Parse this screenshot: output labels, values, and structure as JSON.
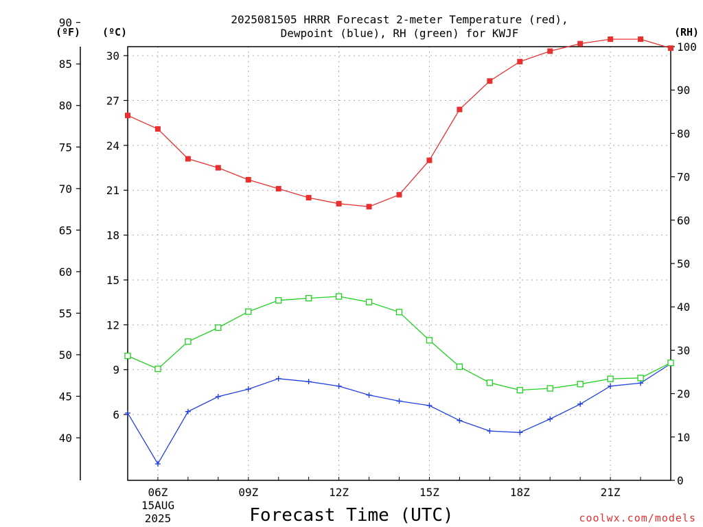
{
  "chart_data": {
    "type": "line",
    "title_lines": [
      "2025081505 HRRR Forecast 2-meter Temperature (red),",
      "Dewpoint (blue), RH (green) for KWJF"
    ],
    "xlabel": "Forecast Time (UTC)",
    "credit": "coolwx.com/models",
    "left_f_unit": "(ºF)",
    "left_c_unit": "(ºC)",
    "right_unit": "(RH)",
    "x_hours": [
      5,
      6,
      7,
      8,
      9,
      10,
      11,
      12,
      13,
      14,
      15,
      16,
      17,
      18,
      19,
      20,
      21,
      22,
      23
    ],
    "x_tick_hours": [
      6,
      9,
      12,
      15,
      18,
      21
    ],
    "x_tick_labels": [
      "06Z",
      "09Z",
      "12Z",
      "15Z",
      "18Z",
      "21Z"
    ],
    "date_line1": "15AUG",
    "date_line2": "2025",
    "xlim": [
      5,
      23
    ],
    "f_axis": {
      "ticks": [
        40,
        45,
        50,
        55,
        60,
        65,
        70,
        75,
        80,
        85,
        90
      ],
      "labels": [
        "40",
        "45",
        "50",
        "55",
        "60",
        "65",
        "70",
        "75",
        "80",
        "85",
        "90"
      ]
    },
    "c_axis": {
      "ticks": [
        6,
        9,
        12,
        15,
        18,
        21,
        24,
        27,
        30
      ],
      "labels": [
        "6",
        "9",
        "12",
        "15",
        "18",
        "21",
        "24",
        "27",
        "30"
      ],
      "ylim": [
        1.6,
        30.6
      ]
    },
    "rh_axis": {
      "ticks": [
        0,
        10,
        20,
        30,
        40,
        50,
        60,
        70,
        80,
        90,
        100
      ],
      "labels": [
        "0",
        "10",
        "20",
        "30",
        "40",
        "50",
        "60",
        "70",
        "80",
        "90",
        "100"
      ],
      "ylim": [
        0,
        100
      ]
    },
    "series": [
      {
        "key": "temp",
        "color": "#e83030",
        "marker": "filled-square",
        "axis": "c",
        "values": [
          26.0,
          25.1,
          23.1,
          22.5,
          21.7,
          21.1,
          20.5,
          20.1,
          19.9,
          20.7,
          23.0,
          26.4,
          28.3,
          29.6,
          30.3,
          30.8,
          31.1,
          31.1,
          30.5
        ]
      },
      {
        "key": "dewpoint",
        "color": "#2040e0",
        "marker": "plus",
        "axis": "c",
        "values": [
          6.1,
          2.7,
          6.2,
          7.2,
          7.7,
          8.4,
          8.2,
          7.9,
          7.3,
          6.9,
          6.6,
          5.6,
          4.9,
          4.8,
          5.7,
          6.7,
          7.9,
          8.1,
          9.4
        ]
      },
      {
        "key": "rh",
        "color": "#20d020",
        "marker": "hollow-square",
        "axis": "rh",
        "values": [
          28.7,
          25.7,
          32.0,
          35.2,
          38.9,
          41.5,
          42.0,
          42.4,
          41.1,
          38.8,
          32.3,
          26.2,
          22.5,
          20.8,
          21.2,
          22.2,
          23.4,
          23.6,
          27.1
        ]
      }
    ]
  }
}
